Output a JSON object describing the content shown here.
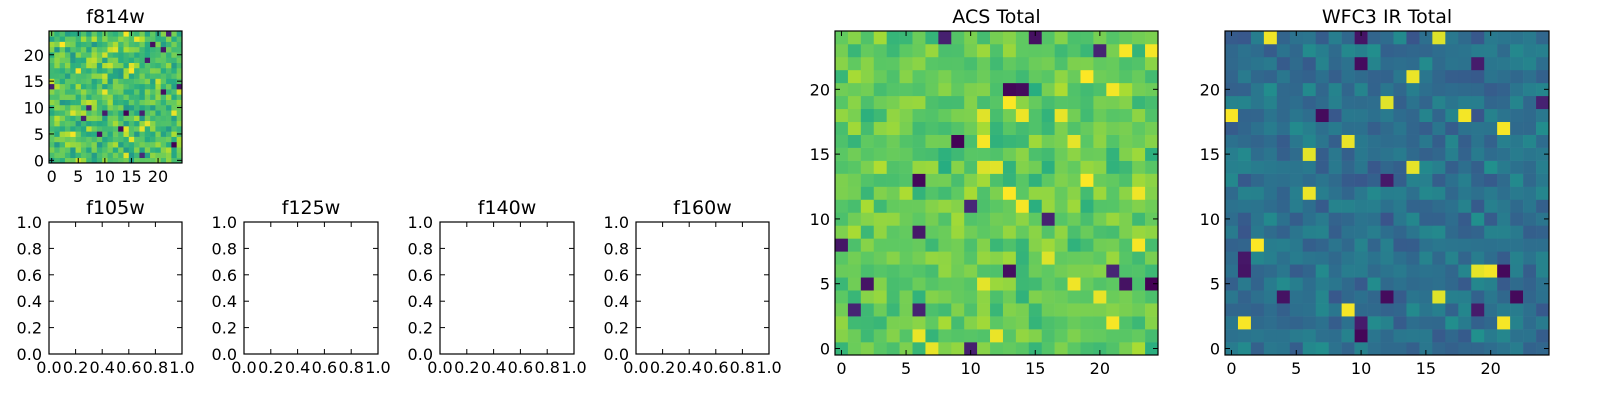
{
  "figure": {
    "panels": [
      {
        "id": "f814w",
        "title": "f814w",
        "kind": "image"
      },
      {
        "id": "f105w",
        "title": "f105w",
        "kind": "empty"
      },
      {
        "id": "f125w",
        "title": "f125w",
        "kind": "empty"
      },
      {
        "id": "f140w",
        "title": "f140w",
        "kind": "empty"
      },
      {
        "id": "f160w",
        "title": "f160w",
        "kind": "empty"
      },
      {
        "id": "acs",
        "title": "ACS Total",
        "kind": "image"
      },
      {
        "id": "wfc3",
        "title": "WFC3 IR Total",
        "kind": "image"
      }
    ]
  },
  "chart_data": [
    {
      "type": "heatmap",
      "title": "f814w",
      "colormap": "viridis",
      "grid": [
        25,
        25
      ],
      "xlim": [
        -0.5,
        24.5
      ],
      "ylim": [
        -0.5,
        24.5
      ],
      "xticks": [
        "0",
        "5",
        "10",
        "15",
        "20"
      ],
      "yticks": [
        "0",
        "5",
        "10",
        "15",
        "20"
      ],
      "value_range": [
        0,
        1
      ],
      "typical_value": 0.72,
      "spread": 0.22
    },
    {
      "type": "empty",
      "title": "f105w",
      "xlim": [
        0,
        1
      ],
      "ylim": [
        0,
        1
      ],
      "xticks": [
        "0.0",
        "0.2",
        "0.4",
        "0.6",
        "0.8",
        "1.0"
      ],
      "yticks": [
        "0.0",
        "0.2",
        "0.4",
        "0.6",
        "0.8",
        "1.0"
      ]
    },
    {
      "type": "empty",
      "title": "f125w",
      "xlim": [
        0,
        1
      ],
      "ylim": [
        0,
        1
      ],
      "xticks": [
        "0.0",
        "0.2",
        "0.4",
        "0.6",
        "0.8",
        "1.0"
      ],
      "yticks": [
        "0.0",
        "0.2",
        "0.4",
        "0.6",
        "0.8",
        "1.0"
      ]
    },
    {
      "type": "empty",
      "title": "f140w",
      "xlim": [
        0,
        1
      ],
      "ylim": [
        0,
        1
      ],
      "xticks": [
        "0.0",
        "0.2",
        "0.4",
        "0.6",
        "0.8",
        "1.0"
      ],
      "yticks": [
        "0.0",
        "0.2",
        "0.4",
        "0.6",
        "0.8",
        "1.0"
      ]
    },
    {
      "type": "empty",
      "title": "f160w",
      "xlim": [
        0,
        1
      ],
      "ylim": [
        0,
        1
      ],
      "xticks": [
        "0.0",
        "0.2",
        "0.4",
        "0.6",
        "0.8",
        "1.0"
      ],
      "yticks": [
        "0.0",
        "0.2",
        "0.4",
        "0.6",
        "0.8",
        "1.0"
      ]
    },
    {
      "type": "heatmap",
      "title": "ACS Total",
      "colormap": "viridis",
      "grid": [
        25,
        25
      ],
      "xlim": [
        -0.5,
        24.5
      ],
      "ylim": [
        -0.5,
        24.5
      ],
      "xticks": [
        "0",
        "5",
        "10",
        "15",
        "20"
      ],
      "yticks": [
        "0",
        "5",
        "10",
        "15",
        "20"
      ],
      "value_range": [
        0,
        1
      ],
      "typical_value": 0.76,
      "spread": 0.14
    },
    {
      "type": "heatmap",
      "title": "WFC3 IR Total",
      "colormap": "viridis",
      "grid": [
        25,
        25
      ],
      "xlim": [
        -0.5,
        24.5
      ],
      "ylim": [
        -0.5,
        24.5
      ],
      "xticks": [
        "0",
        "5",
        "10",
        "15",
        "20"
      ],
      "yticks": [
        "0",
        "5",
        "10",
        "15",
        "20"
      ],
      "value_range": [
        0,
        1
      ],
      "typical_value": 0.38,
      "spread": 0.13
    }
  ]
}
